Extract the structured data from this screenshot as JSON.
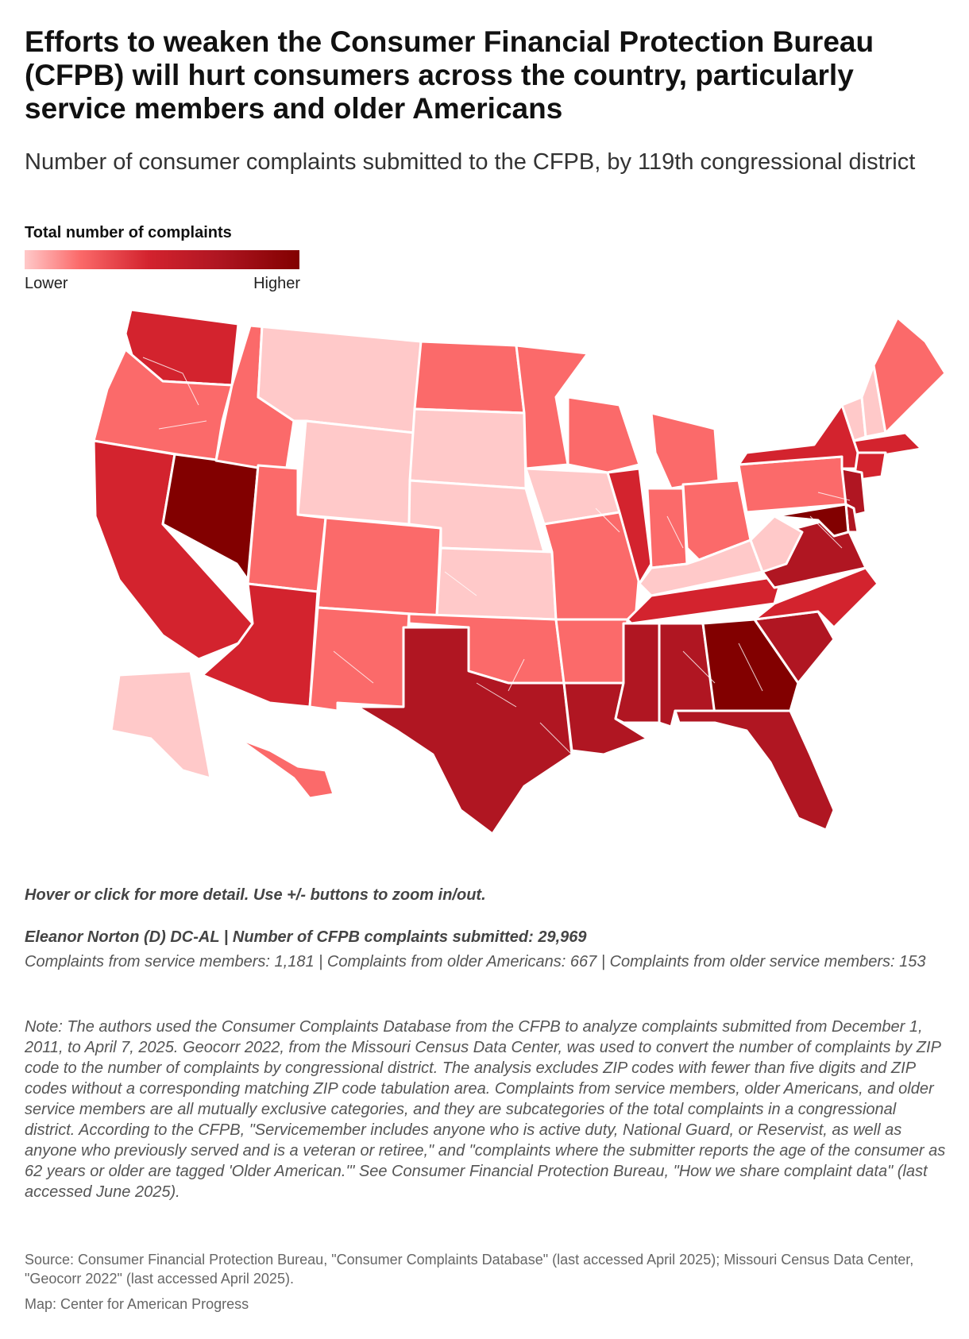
{
  "header": {
    "title": "Efforts to weaken the Consumer Financial Protection Bureau (CFPB) will hurt consumers across the country, particularly service members and older Americans",
    "subtitle": "Number of consumer complaints submitted to the CFPB, by 119th congressional district"
  },
  "legend": {
    "title": "Total number of complaints",
    "low_label": "Lower",
    "high_label": "Higher",
    "colors": [
      "#ffc9c9",
      "#fb6a6a",
      "#d3232e",
      "#b01622",
      "#820000"
    ]
  },
  "map": {
    "type": "choropleth",
    "region": "United States congressional districts (119th Congress)",
    "state_levels": {
      "WA": 2,
      "OR": 1,
      "CA": 2,
      "NV": 4,
      "ID": 1,
      "MT": 0,
      "WY": 0,
      "UT": 1,
      "AZ": 2,
      "CO": 1,
      "NM": 1,
      "ND": 1,
      "SD": 0,
      "NE": 0,
      "KS": 0,
      "OK": 1,
      "TX": 3,
      "MN": 1,
      "IA": 0,
      "MO": 1,
      "AR": 1,
      "LA": 3,
      "WI": 1,
      "IL": 2,
      "MS": 3,
      "MI": 1,
      "IN": 1,
      "KY": 0,
      "TN": 2,
      "AL": 3,
      "OH": 1,
      "GA": 4,
      "FL": 3,
      "SC": 3,
      "NC": 2,
      "VA": 3,
      "WV": 0,
      "PA": 1,
      "NY": 2,
      "VT": 0,
      "NH": 0,
      "ME": 1,
      "MA": 2,
      "CT": 2,
      "NJ": 3,
      "DE": 3,
      "MD": 4,
      "AK": 0,
      "HI": 1
    }
  },
  "interaction": {
    "hint": "Hover or click for more detail. Use +/- buttons to zoom in/out."
  },
  "selected": {
    "headline": "Eleanor Norton (D) DC-AL | Number of CFPB complaints submitted: 29,969",
    "detail": "Complaints from service members: 1,181 | Complaints from older Americans: 667 | Complaints from older service members: 153"
  },
  "note": "Note: The authors used the Consumer Complaints Database from the CFPB to analyze complaints submitted from December 1, 2011, to April 7, 2025. Geocorr 2022, from the Missouri Census Data Center, was used to convert the number of complaints by ZIP code to the number of complaints by congressional district. The analysis excludes ZIP codes with fewer than five digits and ZIP codes without a corresponding matching ZIP code tabulation area. Complaints from service members, older Americans, and older service members are all mutually exclusive categories, and they are subcategories of the total complaints in a congressional district. According to the CFPB, \"Servicemember includes anyone who is active duty, National Guard, or Reservist, as well as anyone who previously served and is a veteran or retiree,\" and \"complaints where the submitter reports the age of the consumer as 62 years or older are tagged 'Older American.'\" See Consumer Financial Protection Bureau, \"How we share complaint data\" (last accessed June 2025).",
  "source": "Source: Consumer Financial Protection Bureau, \"Consumer Complaints Database\" (last accessed April 2025); Missouri Census Data Center, \"Geocorr 2022\" (last accessed April 2025).",
  "credit": "Map: Center for American Progress"
}
